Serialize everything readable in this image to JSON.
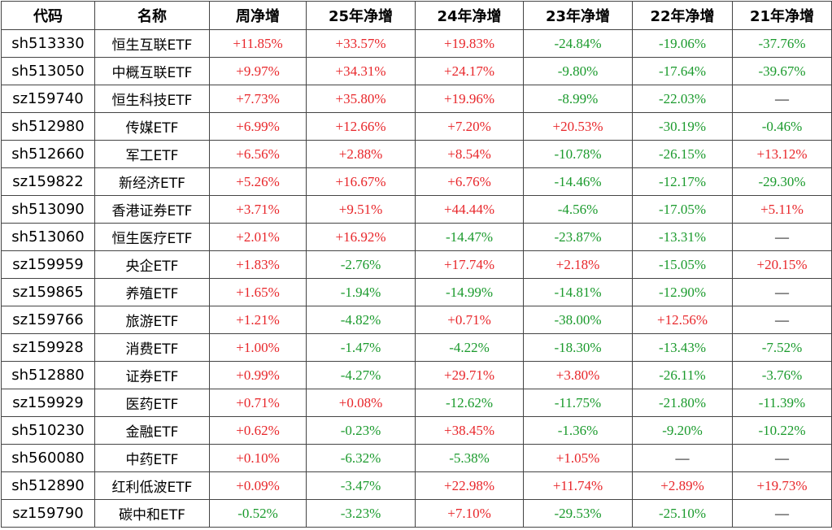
{
  "table": {
    "header": [
      "代码",
      "名称",
      "周净增",
      "25年净增",
      "24年净增",
      "23年净增",
      "22年净增",
      "21年净增"
    ],
    "rows": [
      [
        "sh513330",
        "恒生互联ETF",
        "+11.85%",
        "+33.57%",
        "+19.83%",
        "-24.84%",
        "-19.06%",
        "-37.76%"
      ],
      [
        "sh513050",
        "中概互联ETF",
        "+9.97%",
        "+34.31%",
        "+24.17%",
        "-9.80%",
        "-17.64%",
        "-39.67%"
      ],
      [
        "sz159740",
        "恒生科技ETF",
        "+7.73%",
        "+35.80%",
        "+19.96%",
        "-8.99%",
        "-22.03%",
        "—"
      ],
      [
        "sh512980",
        "传媒ETF",
        "+6.99%",
        "+12.66%",
        "+7.20%",
        "+20.53%",
        "-30.19%",
        "-0.46%"
      ],
      [
        "sh512660",
        "军工ETF",
        "+6.56%",
        "+2.88%",
        "+8.54%",
        "-10.78%",
        "-26.15%",
        "+13.12%"
      ],
      [
        "sz159822",
        "新经济ETF",
        "+5.26%",
        "+16.67%",
        "+6.76%",
        "-14.46%",
        "-12.17%",
        "-29.30%"
      ],
      [
        "sh513090",
        "香港证券ETF",
        "+3.71%",
        "+9.51%",
        "+44.44%",
        "-4.56%",
        "-17.05%",
        "+5.11%"
      ],
      [
        "sh513060",
        "恒生医疗ETF",
        "+2.01%",
        "+16.92%",
        "-14.47%",
        "-23.87%",
        "-13.31%",
        "—"
      ],
      [
        "sz159959",
        "央企ETF",
        "+1.83%",
        "-2.76%",
        "+17.74%",
        "+2.18%",
        "-15.05%",
        "+20.15%"
      ],
      [
        "sz159865",
        "养殖ETF",
        "+1.65%",
        "-1.94%",
        "-14.99%",
        "-14.81%",
        "-12.90%",
        "—"
      ],
      [
        "sz159766",
        "旅游ETF",
        "+1.21%",
        "-4.82%",
        "+0.71%",
        "-38.00%",
        "+12.56%",
        "—"
      ],
      [
        "sz159928",
        "消费ETF",
        "+1.00%",
        "-1.47%",
        "-4.22%",
        "-18.30%",
        "-13.43%",
        "-7.52%"
      ],
      [
        "sh512880",
        "证券ETF",
        "+0.99%",
        "-4.27%",
        "+29.71%",
        "+3.80%",
        "-26.11%",
        "-3.76%"
      ],
      [
        "sz159929",
        "医药ETF",
        "+0.71%",
        "+0.08%",
        "-12.62%",
        "-11.75%",
        "-21.80%",
        "-11.39%"
      ],
      [
        "sh510230",
        "金融ETF",
        "+0.62%",
        "-0.23%",
        "+38.45%",
        "-1.36%",
        "-9.20%",
        "-10.22%"
      ],
      [
        "sh560080",
        "中药ETF",
        "+0.10%",
        "-6.32%",
        "-5.38%",
        "+1.05%",
        "—",
        "—"
      ],
      [
        "sh512890",
        "红利低波ETF",
        "+0.09%",
        "-3.47%",
        "+22.98%",
        "+11.74%",
        "+2.89%",
        "+19.73%"
      ],
      [
        "sz159790",
        "碳中和ETF",
        "-0.52%",
        "-3.23%",
        "+7.10%",
        "-29.53%",
        "-25.10%",
        "—"
      ]
    ]
  }
}
